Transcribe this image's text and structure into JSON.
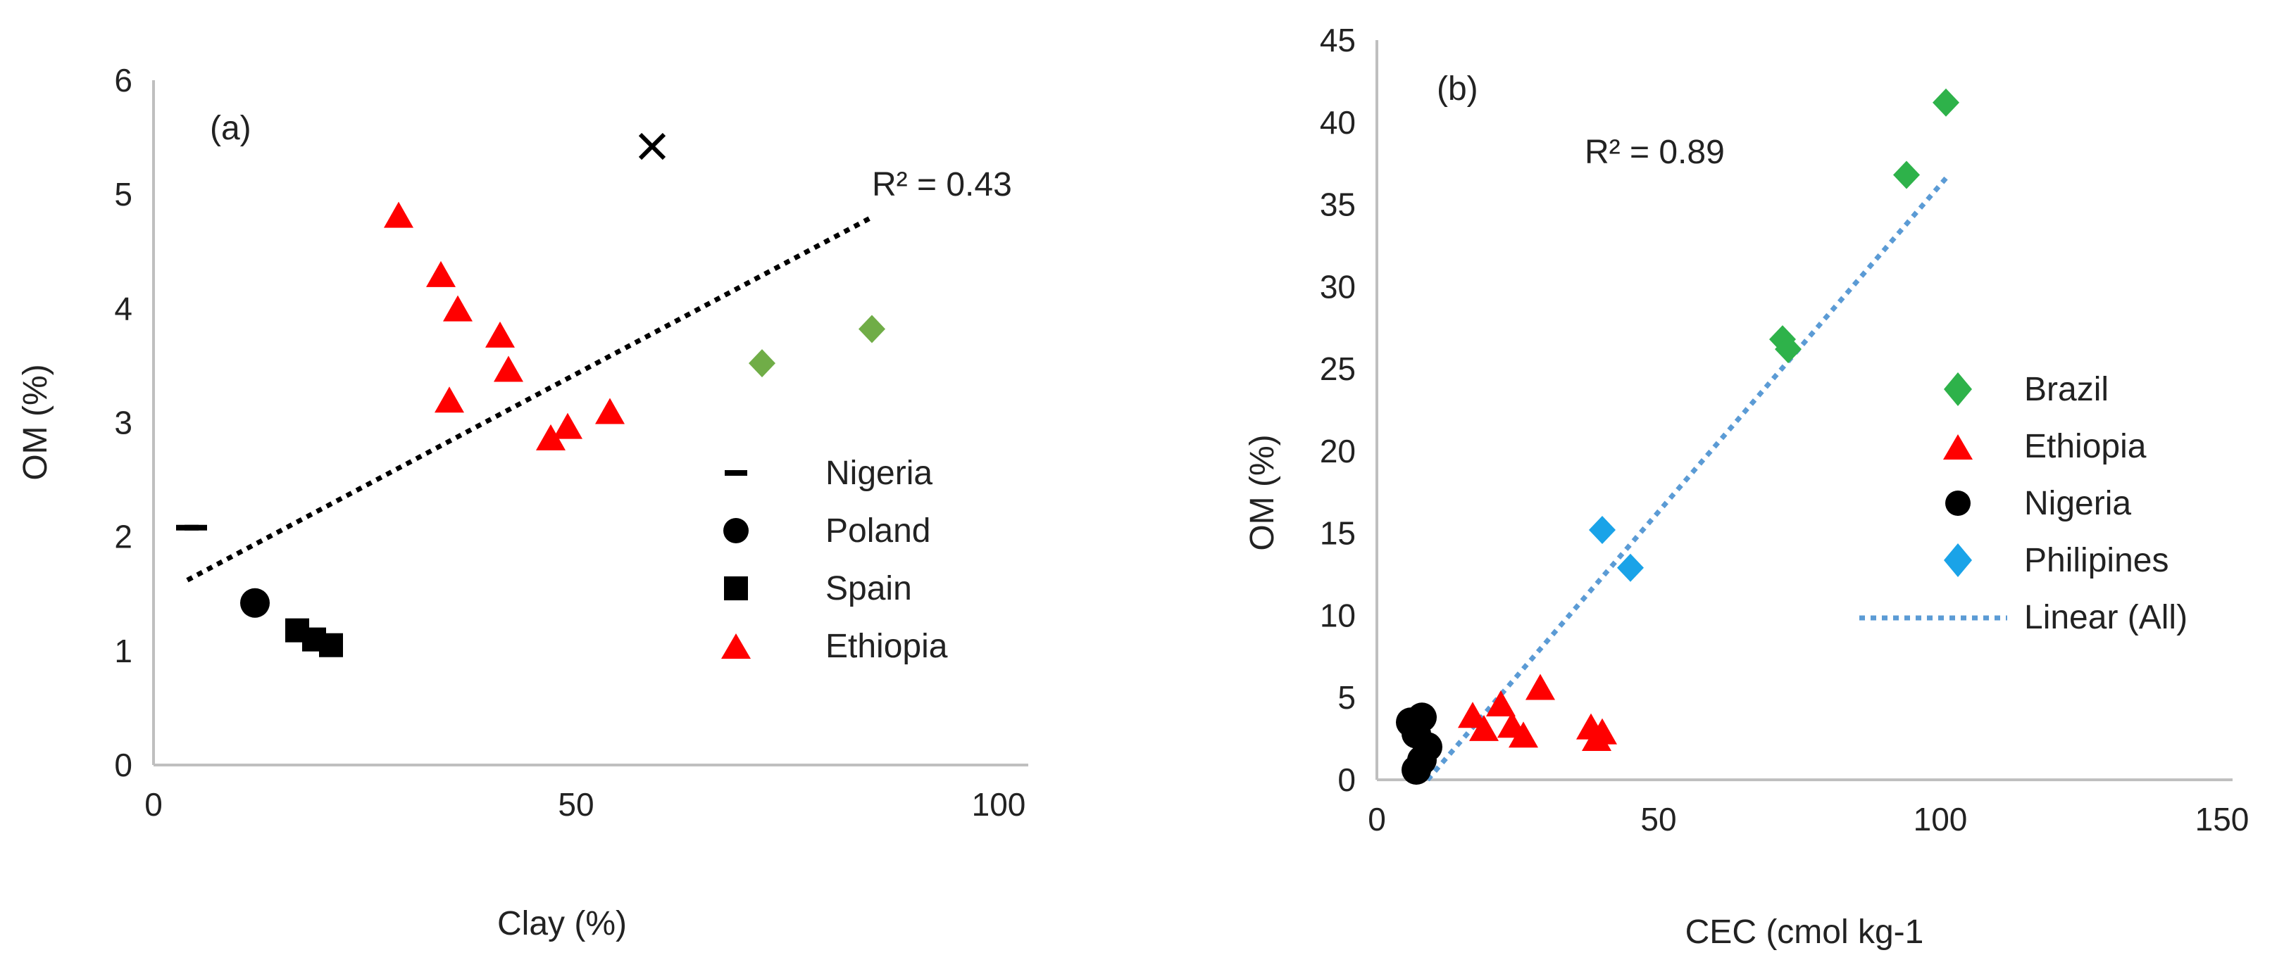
{
  "chart_data": [
    {
      "type": "scatter",
      "panel_label": "(a)",
      "xlabel": "Clay (%)",
      "ylabel": "OM (%)",
      "xlim": [
        0,
        100
      ],
      "ylim": [
        0,
        6
      ],
      "xticks": [
        0,
        50,
        100
      ],
      "yticks": [
        0,
        1,
        2,
        3,
        4,
        5,
        6
      ],
      "grid": false,
      "legend_position": "right",
      "series": [
        {
          "name": "Nigeria",
          "marker": "dash",
          "color": "#000000",
          "in_legend": true,
          "points": [
            [
              4,
              2.08
            ],
            [
              5,
              2.08
            ]
          ]
        },
        {
          "name": "Poland",
          "marker": "circle",
          "color": "#000000",
          "in_legend": true,
          "points": [
            [
              12,
              1.42
            ]
          ]
        },
        {
          "name": "Spain",
          "marker": "square",
          "color": "#000000",
          "in_legend": true,
          "points": [
            [
              17,
              1.18
            ],
            [
              19,
              1.1
            ],
            [
              21,
              1.05
            ]
          ]
        },
        {
          "name": "Ethiopia",
          "marker": "triangle",
          "color": "#ff0000",
          "in_legend": true,
          "points": [
            [
              29,
              4.8
            ],
            [
              34,
              4.28
            ],
            [
              36,
              3.98
            ],
            [
              41,
              3.75
            ],
            [
              42,
              3.45
            ],
            [
              35,
              3.18
            ],
            [
              47,
              2.85
            ],
            [
              49,
              2.95
            ],
            [
              54,
              3.08
            ]
          ]
        },
        {
          "name": "",
          "marker": "diamond",
          "color": "#70ad47",
          "in_legend": false,
          "points": [
            [
              72,
              3.52
            ],
            [
              85,
              3.82
            ]
          ]
        },
        {
          "name": "",
          "marker": "x",
          "color": "#000000",
          "in_legend": false,
          "points": [
            [
              59,
              5.42
            ]
          ]
        }
      ],
      "trendline": {
        "x": [
          4,
          85
        ],
        "y": [
          1.62,
          4.8
        ],
        "style": "dotted",
        "color": "#000000"
      },
      "r2_label": "R² = 0.43"
    },
    {
      "type": "scatter",
      "panel_label": "(b)",
      "xlabel": "CEC (cmol kg-1",
      "ylabel": "OM (%)",
      "xlim": [
        0,
        150
      ],
      "ylim": [
        0,
        45
      ],
      "xticks": [
        0,
        50,
        100,
        150
      ],
      "yticks": [
        0,
        5,
        10,
        15,
        20,
        25,
        30,
        35,
        40,
        45
      ],
      "grid": false,
      "legend_position": "right",
      "series": [
        {
          "name": "Brazil",
          "marker": "diamond",
          "color": "#2eb24a",
          "in_legend": true,
          "points": [
            [
              101,
              41.2
            ],
            [
              94,
              36.8
            ],
            [
              72,
              26.8
            ],
            [
              73,
              26.2
            ]
          ]
        },
        {
          "name": "Ethiopia",
          "marker": "triangle",
          "color": "#ff0000",
          "in_legend": true,
          "points": [
            [
              17,
              3.8
            ],
            [
              19,
              3.0
            ],
            [
              22,
              4.5
            ],
            [
              24,
              3.2
            ],
            [
              26,
              2.6
            ],
            [
              29,
              5.5
            ],
            [
              38,
              3.1
            ],
            [
              39,
              2.4
            ],
            [
              40,
              2.8
            ]
          ]
        },
        {
          "name": "Nigeria",
          "marker": "circle",
          "color": "#000000",
          "in_legend": true,
          "points": [
            [
              6,
              3.5
            ],
            [
              7,
              2.8
            ],
            [
              8,
              3.8
            ],
            [
              9,
              2.0
            ],
            [
              8,
              1.2
            ],
            [
              7,
              0.6
            ]
          ]
        },
        {
          "name": "Philipines",
          "marker": "diamond",
          "color": "#1aa3e8",
          "in_legend": true,
          "points": [
            [
              40,
              15.2
            ],
            [
              45,
              12.9
            ]
          ]
        }
      ],
      "trendline": {
        "name": "Linear (All)",
        "x": [
          9,
          101
        ],
        "y": [
          0,
          36.6
        ],
        "style": "dotted",
        "color": "#5b9bd5"
      },
      "r2_label": "R² = 0.89"
    }
  ]
}
